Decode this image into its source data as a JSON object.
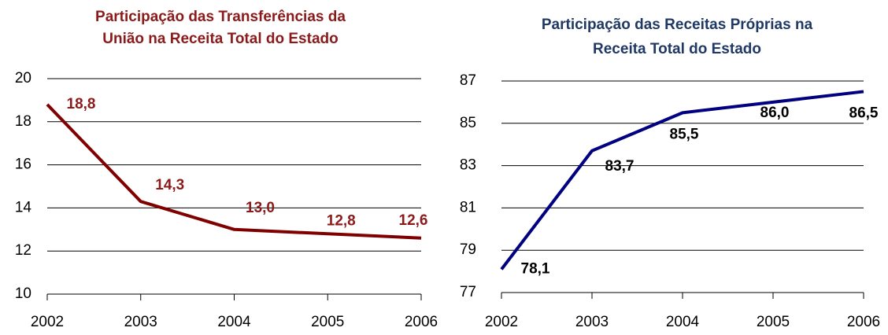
{
  "chart_data": [
    {
      "type": "line",
      "title": [
        "Participação das Transferências da",
        "União na Receita Total do Estado"
      ],
      "categories": [
        "2002",
        "2003",
        "2004",
        "2005",
        "2006"
      ],
      "values": [
        18.8,
        14.3,
        13.0,
        12.8,
        12.6
      ],
      "value_labels": [
        "18,8",
        "14,3",
        "13,0",
        "12,8",
        "12,6"
      ],
      "color": "#800000",
      "title_color": "#8b1a1a",
      "label_color": "#8b1a1a",
      "ylim": [
        10,
        20
      ],
      "yticks": [
        10,
        12,
        14,
        16,
        18,
        20
      ],
      "grid": true
    },
    {
      "type": "line",
      "title": [
        "Participação das Receitas Próprias na",
        "Receita Total do Estado"
      ],
      "categories": [
        "2002",
        "2003",
        "2004",
        "2005",
        "2006"
      ],
      "values": [
        78.1,
        83.7,
        85.5,
        86.0,
        86.5
      ],
      "value_labels": [
        "78,1",
        "83,7",
        "85,5",
        "86,0",
        "86,5"
      ],
      "color": "#000080",
      "title_color": "#1f3864",
      "label_color": "#000000",
      "ylim": [
        77,
        87
      ],
      "yticks": [
        77,
        79,
        81,
        83,
        85,
        87
      ],
      "grid": true
    }
  ]
}
